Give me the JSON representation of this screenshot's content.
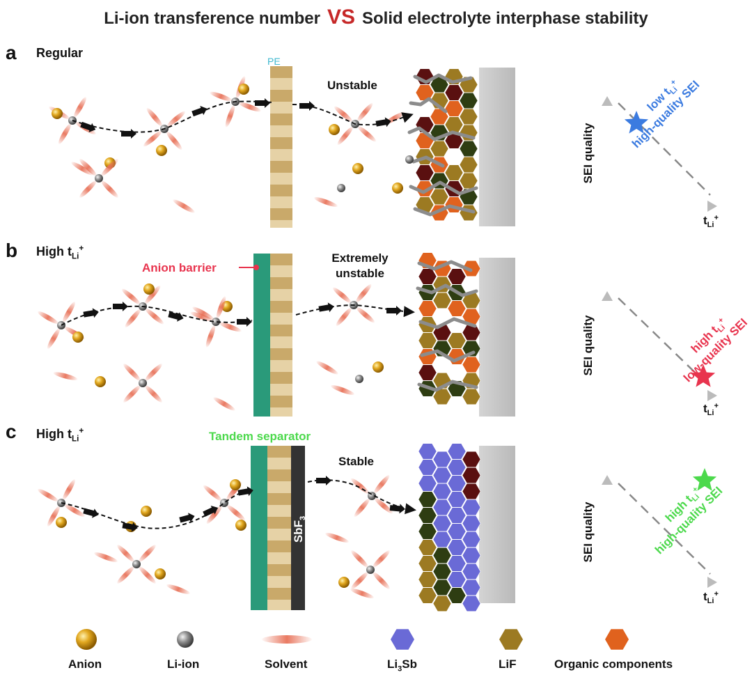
{
  "title": {
    "left": "Li-ion transference number",
    "vs": "VS",
    "right": "Solid electrolyte interphase stability"
  },
  "panels": [
    {
      "label": "a",
      "title": "Regular",
      "title_sub": "",
      "title_sup": "",
      "separator_label": "PE",
      "state": "Unstable",
      "star_label_1": "low t",
      "star_label_1_sub": "Li",
      "star_label_1_sup": "+",
      "star_label_2": "high-quality SEI",
      "star_color": "#3b7be0"
    },
    {
      "label": "b",
      "title": "High t",
      "title_sub": "Li",
      "title_sup": "+",
      "separator_label": "Anion barrier",
      "state_line1": "Extremely",
      "state_line2": "unstable",
      "star_label_1": "high t",
      "star_label_1_sub": "Li",
      "star_label_1_sup": "+",
      "star_label_2": "low-quality SEI",
      "star_color": "#e8344e"
    },
    {
      "label": "c",
      "title": "High t",
      "title_sub": "Li",
      "title_sup": "+",
      "separator_label": "Tandem separator",
      "sbf_label": "SbF",
      "sbf_sub": "3",
      "state": "Stable",
      "star_label_1": "high t",
      "star_label_1_sub": "Li",
      "star_label_1_sup": "+",
      "star_label_2": "high-quality SEI",
      "star_color": "#4cd94c"
    }
  ],
  "axes": {
    "y_label": "SEI quality",
    "x_label": "t",
    "x_sub": "Li",
    "x_sup": "+"
  },
  "legend": [
    {
      "label": "Anion",
      "icon": "anion-sphere"
    },
    {
      "label": "Li-ion",
      "icon": "li-ion-sphere"
    },
    {
      "label": "Solvent",
      "icon": "solvent-ellipse"
    },
    {
      "label": "Li",
      "sub": "3",
      "suffix": "Sb",
      "icon": "hexagon",
      "color": "#6a6ad6"
    },
    {
      "label": "LiF",
      "icon": "hexagon",
      "color": "#9c7a22"
    },
    {
      "label": "Organic components",
      "icon": "hexagon",
      "color": "#e0621e"
    }
  ],
  "colors": {
    "anion": "#d4a017",
    "li_ion": "#8a8a8a",
    "solvent": "#e8735a",
    "pe_light": "#e6d2a6",
    "pe_dark": "#c9a96a",
    "barrier": "#2a9a7a",
    "sbf3": "#333333",
    "electrode": "#c8c8c8",
    "crack": "#8c8c8c",
    "dark_red": "#5a1010",
    "dark_green": "#2e3d12",
    "organic": "#e0621e",
    "lif": "#9c7a22",
    "li3sb": "#6a6ad6"
  }
}
